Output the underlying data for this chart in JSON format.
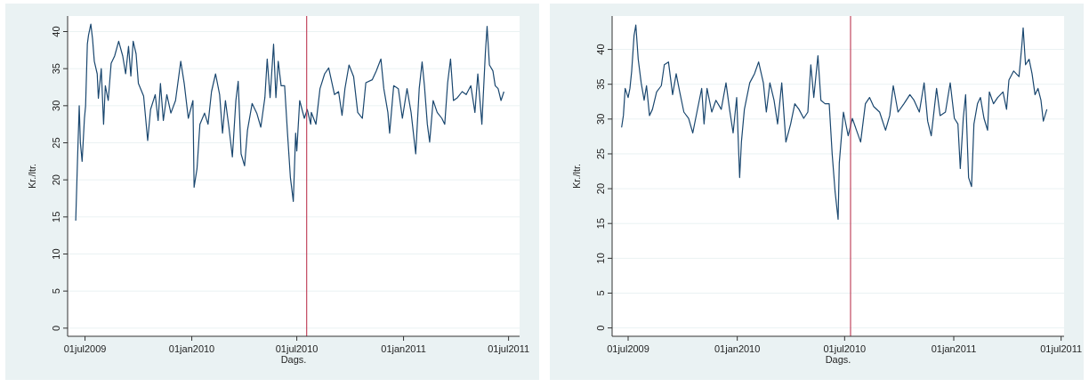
{
  "chart_data": [
    {
      "type": "line",
      "xlabel": "Dags.",
      "ylabel": "Kr./ltr.",
      "grid": "y",
      "marker": "none",
      "line_style": "solid",
      "xlim": [
        "2009-06-01",
        "2011-07-20"
      ],
      "ylim": [
        -1.1,
        42.1
      ],
      "xticks": [
        {
          "value": "2009-07-01",
          "label": "01jul2009"
        },
        {
          "value": "2010-01-01",
          "label": "01jan2010"
        },
        {
          "value": "2010-07-01",
          "label": "01jul2010"
        },
        {
          "value": "2011-01-01",
          "label": "01jan2011"
        },
        {
          "value": "2011-07-01",
          "label": "01jul2011"
        }
      ],
      "yticks": [
        0,
        5,
        10,
        15,
        20,
        25,
        30,
        35,
        40
      ],
      "ref_lines": [
        {
          "axis": "x",
          "value": "2010-07-18",
          "color": "#c2475f"
        }
      ],
      "series": [
        {
          "color": "#1a476f",
          "x": [
            "2009-06-15",
            "2009-06-18",
            "2009-06-21",
            "2009-06-23",
            "2009-06-26",
            "2009-06-30",
            "2009-07-02",
            "2009-07-05",
            "2009-07-07",
            "2009-07-11",
            "2009-07-14",
            "2009-07-17",
            "2009-07-22",
            "2009-07-24",
            "2009-07-29",
            "2009-08-02",
            "2009-08-05",
            "2009-08-10",
            "2009-08-15",
            "2009-08-21",
            "2009-08-28",
            "2009-09-04",
            "2009-09-09",
            "2009-09-14",
            "2009-09-18",
            "2009-09-22",
            "2009-09-27",
            "2009-10-01",
            "2009-10-10",
            "2009-10-17",
            "2009-10-22",
            "2009-10-30",
            "2009-11-04",
            "2009-11-08",
            "2009-11-13",
            "2009-11-19",
            "2009-11-26",
            "2009-12-04",
            "2009-12-13",
            "2009-12-19",
            "2009-12-26",
            "2010-01-03",
            "2010-01-05",
            "2010-01-10",
            "2010-01-15",
            "2010-01-23",
            "2010-01-29",
            "2010-02-04",
            "2010-02-11",
            "2010-02-18",
            "2010-02-23",
            "2010-02-28",
            "2010-03-06",
            "2010-03-12",
            "2010-03-18",
            "2010-03-22",
            "2010-03-27",
            "2010-04-02",
            "2010-04-07",
            "2010-04-15",
            "2010-04-23",
            "2010-04-30",
            "2010-05-07",
            "2010-05-11",
            "2010-05-16",
            "2010-05-22",
            "2010-05-26",
            "2010-05-30",
            "2010-06-04",
            "2010-06-10",
            "2010-06-15",
            "2010-06-20",
            "2010-06-25",
            "2010-06-29",
            "2010-07-01",
            "2010-07-06",
            "2010-07-14",
            "2010-07-19",
            "2010-07-25",
            "2010-07-26",
            "2010-08-03",
            "2010-08-10",
            "2010-08-18",
            "2010-08-25",
            "2010-09-04",
            "2010-09-11",
            "2010-09-17",
            "2010-09-22",
            "2010-09-29",
            "2010-10-07",
            "2010-10-14",
            "2010-10-22",
            "2010-10-28",
            "2010-11-08",
            "2010-11-15",
            "2010-11-23",
            "2010-11-28",
            "2010-12-05",
            "2010-12-08",
            "2010-12-15",
            "2010-12-23",
            "2010-12-30",
            "2011-01-07",
            "2011-01-14",
            "2011-01-22",
            "2011-01-28",
            "2011-02-02",
            "2011-02-06",
            "2011-02-11",
            "2011-02-15",
            "2011-02-21",
            "2011-02-28",
            "2011-03-08",
            "2011-03-13",
            "2011-03-18",
            "2011-03-23",
            "2011-03-28",
            "2011-04-04",
            "2011-04-12",
            "2011-04-19",
            "2011-04-27",
            "2011-05-04",
            "2011-05-09",
            "2011-05-16",
            "2011-05-22",
            "2011-05-25",
            "2011-05-29",
            "2011-06-04",
            "2011-06-08",
            "2011-06-13",
            "2011-06-18",
            "2011-06-23"
          ],
          "values": [
            14.5,
            22.5,
            30,
            25,
            22.5,
            28.3,
            30,
            38.3,
            39.5,
            41,
            39,
            36,
            34.3,
            31,
            35,
            27.5,
            32.7,
            30.7,
            35.7,
            36.7,
            38.7,
            36.7,
            34.3,
            38,
            34,
            38.7,
            37,
            33,
            31.3,
            25.3,
            29.5,
            31.5,
            28,
            33,
            28,
            31.5,
            29,
            30.7,
            36,
            33,
            28.3,
            30.7,
            19,
            21.5,
            27.5,
            29,
            27.5,
            31.9,
            34.3,
            31.5,
            26.3,
            30.7,
            27.1,
            23.1,
            30.7,
            33.3,
            23.5,
            21.9,
            26.7,
            30.3,
            29,
            27.1,
            31.1,
            36.3,
            31.1,
            38.3,
            31.1,
            36,
            32.7,
            32.7,
            26.3,
            20.3,
            17.1,
            26.3,
            23.9,
            30.7,
            28.3,
            29.5,
            27.5,
            29.1,
            27.5,
            32.3,
            34.3,
            35.1,
            31.5,
            31.9,
            28.7,
            32.3,
            35.5,
            33.9,
            29.1,
            28.3,
            33.1,
            33.5,
            34.7,
            36.3,
            32.3,
            29.1,
            26.3,
            32.7,
            32.3,
            28.3,
            32.3,
            29.1,
            23.5,
            32.3,
            35.9,
            32.7,
            27.5,
            25.1,
            30.7,
            29.1,
            28.3,
            27.5,
            33.1,
            36.3,
            30.7,
            31.1,
            31.9,
            31.5,
            32.7,
            29.1,
            34.3,
            27.5,
            37.1,
            40.7,
            35.5,
            34.7,
            32.7,
            32.3,
            30.7,
            31.9
          ]
        }
      ]
    },
    {
      "type": "line",
      "xlabel": "Dags.",
      "ylabel": "Kr./ltr.",
      "grid": "y",
      "marker": "none",
      "line_style": "solid",
      "xlim": [
        "2009-06-04",
        "2011-07-06"
      ],
      "ylim": [
        -1.2,
        44.8
      ],
      "xticks": [
        {
          "value": "2009-07-01",
          "label": "01jul2009"
        },
        {
          "value": "2010-01-01",
          "label": "01jan2010"
        },
        {
          "value": "2010-07-01",
          "label": "01jul2010"
        },
        {
          "value": "2011-01-01",
          "label": "01jan2011"
        },
        {
          "value": "2011-07-01",
          "label": "01jul2011"
        }
      ],
      "yticks": [
        0,
        5,
        10,
        15,
        20,
        25,
        30,
        35,
        40
      ],
      "ref_lines": [
        {
          "axis": "x",
          "value": "2010-07-11",
          "color": "#c2475f"
        }
      ],
      "series": [
        {
          "color": "#1a476f",
          "x": [
            "2009-06-20",
            "2009-06-23",
            "2009-06-26",
            "2009-07-01",
            "2009-07-04",
            "2009-07-07",
            "2009-07-11",
            "2009-07-14",
            "2009-07-18",
            "2009-07-23",
            "2009-07-28",
            "2009-08-01",
            "2009-08-06",
            "2009-08-11",
            "2009-08-18",
            "2009-08-26",
            "2009-08-31",
            "2009-09-07",
            "2009-09-14",
            "2009-09-20",
            "2009-09-26",
            "2009-10-03",
            "2009-10-11",
            "2009-10-18",
            "2009-10-25",
            "2009-11-02",
            "2009-11-06",
            "2009-11-11",
            "2009-11-19",
            "2009-11-26",
            "2009-12-05",
            "2009-12-13",
            "2009-12-19",
            "2009-12-25",
            "2009-12-31",
            "2010-01-05",
            "2010-01-08",
            "2010-01-13",
            "2010-01-22",
            "2010-01-30",
            "2010-02-06",
            "2010-02-14",
            "2010-02-19",
            "2010-02-25",
            "2010-03-04",
            "2010-03-10",
            "2010-03-17",
            "2010-03-24",
            "2010-04-01",
            "2010-04-08",
            "2010-04-15",
            "2010-04-23",
            "2010-04-30",
            "2010-05-05",
            "2010-05-10",
            "2010-05-17",
            "2010-05-22",
            "2010-05-29",
            "2010-06-05",
            "2010-06-10",
            "2010-06-15",
            "2010-06-20",
            "2010-06-22",
            "2010-06-29",
            "2010-07-07",
            "2010-07-14",
            "2010-07-21",
            "2010-07-28",
            "2010-08-05",
            "2010-08-12",
            "2010-08-19",
            "2010-08-29",
            "2010-09-08",
            "2010-09-15",
            "2010-09-21",
            "2010-09-29",
            "2010-10-09",
            "2010-10-19",
            "2010-10-26",
            "2010-11-04",
            "2010-11-12",
            "2010-11-18",
            "2010-11-24",
            "2010-12-03",
            "2010-12-09",
            "2010-12-18",
            "2010-12-26",
            "2011-01-02",
            "2011-01-08",
            "2011-01-12",
            "2011-01-17",
            "2011-01-21",
            "2011-01-26",
            "2011-01-31",
            "2011-02-04",
            "2011-02-10",
            "2011-02-15",
            "2011-02-21",
            "2011-02-27",
            "2011-03-02",
            "2011-03-09",
            "2011-03-16",
            "2011-03-25",
            "2011-03-31",
            "2011-04-04",
            "2011-04-12",
            "2011-04-21",
            "2011-04-26",
            "2011-04-28",
            "2011-05-02",
            "2011-05-08",
            "2011-05-13",
            "2011-05-18",
            "2011-05-23",
            "2011-05-28",
            "2011-06-01",
            "2011-06-07"
          ],
          "values": [
            28.8,
            30.5,
            34.4,
            33.1,
            34.4,
            36.9,
            42,
            43.5,
            38.6,
            35.2,
            32.7,
            34.8,
            30.5,
            31.4,
            33.9,
            34.8,
            37.8,
            38.2,
            33.5,
            36.5,
            33.9,
            31,
            30.1,
            28,
            31,
            34.4,
            29.3,
            34.4,
            31,
            32.7,
            31.4,
            35.2,
            31.4,
            28,
            33.1,
            21.6,
            26.7,
            31.4,
            35.2,
            36.5,
            38.2,
            35.2,
            31,
            35.2,
            32.7,
            29.3,
            35.2,
            26.7,
            29.3,
            32.2,
            31.4,
            30.1,
            31,
            37.8,
            33.1,
            39.1,
            32.7,
            32.2,
            32.2,
            25,
            19.5,
            15.6,
            23.7,
            31,
            27.6,
            30.1,
            28.4,
            26.7,
            32.2,
            33.1,
            31.8,
            31,
            28.4,
            30.5,
            34.8,
            31,
            32.2,
            33.5,
            32.7,
            31,
            35.2,
            29.7,
            27.6,
            34.4,
            30.5,
            31,
            35.2,
            30.1,
            29.3,
            22.9,
            30.1,
            33.5,
            21.6,
            20.3,
            29.3,
            32.2,
            33.1,
            30.1,
            28.4,
            33.9,
            32.2,
            33.1,
            33.9,
            31.4,
            35.6,
            36.9,
            36.1,
            40.8,
            43.1,
            37.8,
            38.6,
            36.5,
            33.5,
            34.4,
            32.7,
            29.7,
            31.4
          ]
        }
      ]
    }
  ]
}
